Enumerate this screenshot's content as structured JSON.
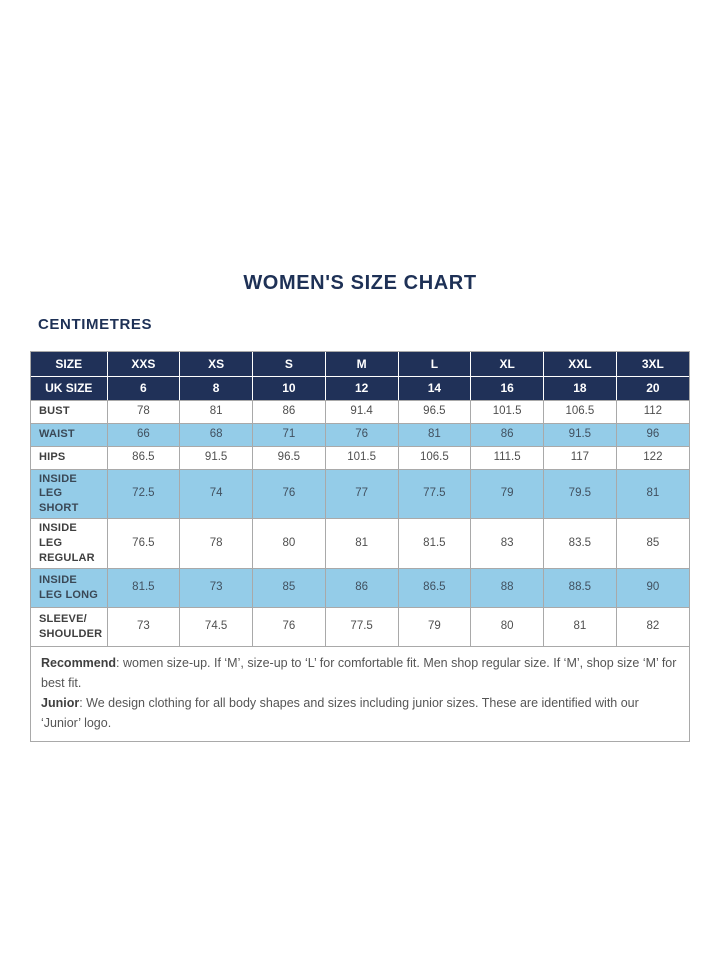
{
  "page": {
    "title": "WOMEN'S SIZE CHART",
    "unit_heading": "CENTIMETRES"
  },
  "table": {
    "header_rows": [
      {
        "label": "SIZE",
        "values": [
          "XXS",
          "XS",
          "S",
          "M",
          "L",
          "XL",
          "XXL",
          "3XL"
        ]
      },
      {
        "label": "UK SIZE",
        "values": [
          "6",
          "8",
          "10",
          "12",
          "14",
          "16",
          "18",
          "20"
        ]
      }
    ],
    "rows": [
      {
        "label": "BUST",
        "highlight": false,
        "values": [
          "78",
          "81",
          "86",
          "91.4",
          "96.5",
          "101.5",
          "106.5",
          "112"
        ]
      },
      {
        "label": "WAIST",
        "highlight": true,
        "values": [
          "66",
          "68",
          "71",
          "76",
          "81",
          "86",
          "91.5",
          "96"
        ]
      },
      {
        "label": "HIPS",
        "highlight": false,
        "values": [
          "86.5",
          "91.5",
          "96.5",
          "101.5",
          "106.5",
          "111.5",
          "117",
          "122"
        ]
      },
      {
        "label": "INSIDE LEG SHORT",
        "highlight": true,
        "values": [
          "72.5",
          "74",
          "76",
          "77",
          "77.5",
          "79",
          "79.5",
          "81"
        ]
      },
      {
        "label": "INSIDE LEG REGULAR",
        "highlight": false,
        "values": [
          "76.5",
          "78",
          "80",
          "81",
          "81.5",
          "83",
          "83.5",
          "85"
        ]
      },
      {
        "label": "INSIDE LEG LONG",
        "highlight": true,
        "values": [
          "81.5",
          "73",
          "85",
          "86",
          "86.5",
          "88",
          "88.5",
          "90"
        ]
      },
      {
        "label": "SLEEVE/ SHOULDER",
        "highlight": false,
        "values": [
          "73",
          "74.5",
          "76",
          "77.5",
          "79",
          "80",
          "81",
          "82"
        ]
      }
    ],
    "footnotes": [
      {
        "bold": "Recommend",
        "text": ": women size-up. If ‘M’, size-up to ‘L’ for comfortable fit. Men shop regular size. If ‘M’, shop size ‘M’ for best fit."
      },
      {
        "bold": "Junior",
        "text": ": We design clothing for all body shapes and sizes including junior sizes. These are identified with our ‘Junior’ logo."
      }
    ]
  },
  "colors": {
    "header_navy": "#203158",
    "title_navy": "#1e3156",
    "highlight_row_blue": "#94cce8",
    "body_text_gray": "#4f4f4f",
    "border_gray": "#a9a9a9"
  }
}
